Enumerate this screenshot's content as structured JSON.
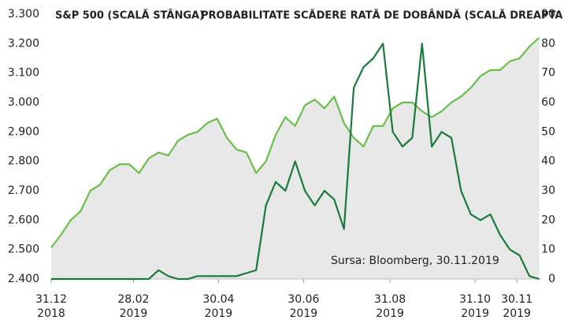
{
  "chart_data": {
    "type": "line",
    "legend_items": [
      "S&P 500 (SCALĂ STÂNGA)",
      "PROBABILITATE SCĂDERE RATĂ DE DOBÂNDĂ (SCALĂ DREAPTA)"
    ],
    "annotation": "Sursa: Bloomberg, 30.11.2019",
    "area_color": "#e8e8e8",
    "x": [
      "2018-12-31",
      "2019-01-07",
      "2019-01-14",
      "2019-01-21",
      "2019-01-28",
      "2019-02-04",
      "2019-02-11",
      "2019-02-18",
      "2019-02-25",
      "2019-03-04",
      "2019-03-11",
      "2019-03-18",
      "2019-03-25",
      "2019-04-01",
      "2019-04-08",
      "2019-04-15",
      "2019-04-22",
      "2019-04-29",
      "2019-05-06",
      "2019-05-13",
      "2019-05-20",
      "2019-05-27",
      "2019-06-03",
      "2019-06-10",
      "2019-06-17",
      "2019-06-24",
      "2019-07-01",
      "2019-07-08",
      "2019-07-15",
      "2019-07-22",
      "2019-07-29",
      "2019-08-05",
      "2019-08-12",
      "2019-08-19",
      "2019-08-26",
      "2019-09-02",
      "2019-09-09",
      "2019-09-16",
      "2019-09-23",
      "2019-09-30",
      "2019-10-07",
      "2019-10-14",
      "2019-10-21",
      "2019-10-28",
      "2019-11-04",
      "2019-11-11",
      "2019-11-18",
      "2019-11-25",
      "2019-12-02",
      "2019-12-09",
      "2019-12-16"
    ],
    "series": [
      {
        "name": "S&P 500 (SCALĂ STÂNGA)",
        "color": "#6abf4b",
        "area": true,
        "values": [
          2507,
          2550,
          2600,
          2630,
          2700,
          2720,
          2770,
          2790,
          2790,
          2760,
          2810,
          2830,
          2820,
          2870,
          2890,
          2900,
          2930,
          2945,
          2880,
          2840,
          2830,
          2760,
          2800,
          2890,
          2950,
          2920,
          2990,
          3010,
          2980,
          3020,
          2930,
          2880,
          2850,
          2920,
          2920,
          2980,
          3000,
          3000,
          2970,
          2950,
          2970,
          3000,
          3020,
          3050,
          3090,
          3110,
          3110,
          3140,
          3150,
          3190,
          3220
        ]
      },
      {
        "name": "PROBABILITATE SCĂDERE RATĂ DE DOBÂNDĂ (SCALĂ DREAPTA)",
        "color": "#1a7a3a",
        "axis": "y2",
        "values": [
          0,
          0,
          0,
          0,
          0,
          0,
          0,
          0,
          0,
          0,
          0,
          3,
          1,
          0,
          0,
          1,
          1,
          1,
          1,
          1,
          2,
          3,
          25,
          33,
          30,
          40,
          30,
          25,
          30,
          27,
          17,
          65,
          72,
          75,
          80,
          50,
          45,
          48,
          80,
          45,
          50,
          48,
          30,
          22,
          20,
          22,
          15,
          10,
          8,
          1,
          0
        ]
      }
    ],
    "xlim": [
      "2018-12-31",
      "2019-12-18"
    ],
    "xticks": [
      {
        "value": "2018-12-31",
        "label": "31.12",
        "year": "2018"
      },
      {
        "value": "2019-02-28",
        "label": "28.02",
        "year": "2019"
      },
      {
        "value": "2019-04-30",
        "label": "30.04",
        "year": "2019"
      },
      {
        "value": "2019-06-30",
        "label": "30.06",
        "year": "2019"
      },
      {
        "value": "2019-08-31",
        "label": "31.08",
        "year": "2019"
      },
      {
        "value": "2019-10-31",
        "label": "31.10",
        "year": "2019"
      },
      {
        "value": "2019-11-30",
        "label": "30.11",
        "year": "2019"
      }
    ],
    "ylim": [
      2400,
      3300
    ],
    "yticks": [
      {
        "value": 2400,
        "label": "2.400"
      },
      {
        "value": 2500,
        "label": "2.500"
      },
      {
        "value": 2600,
        "label": "2.600"
      },
      {
        "value": 2700,
        "label": "2.700"
      },
      {
        "value": 2800,
        "label": "2.800"
      },
      {
        "value": 2900,
        "label": "2.900"
      },
      {
        "value": 3000,
        "label": "3.000"
      },
      {
        "value": 3100,
        "label": "3.100"
      },
      {
        "value": 3200,
        "label": "3.200"
      },
      {
        "value": 3300,
        "label": "3.300"
      }
    ],
    "y2lim": [
      0,
      90
    ],
    "y2ticks": [
      0,
      10,
      20,
      30,
      40,
      50,
      60,
      70,
      80,
      90
    ]
  }
}
